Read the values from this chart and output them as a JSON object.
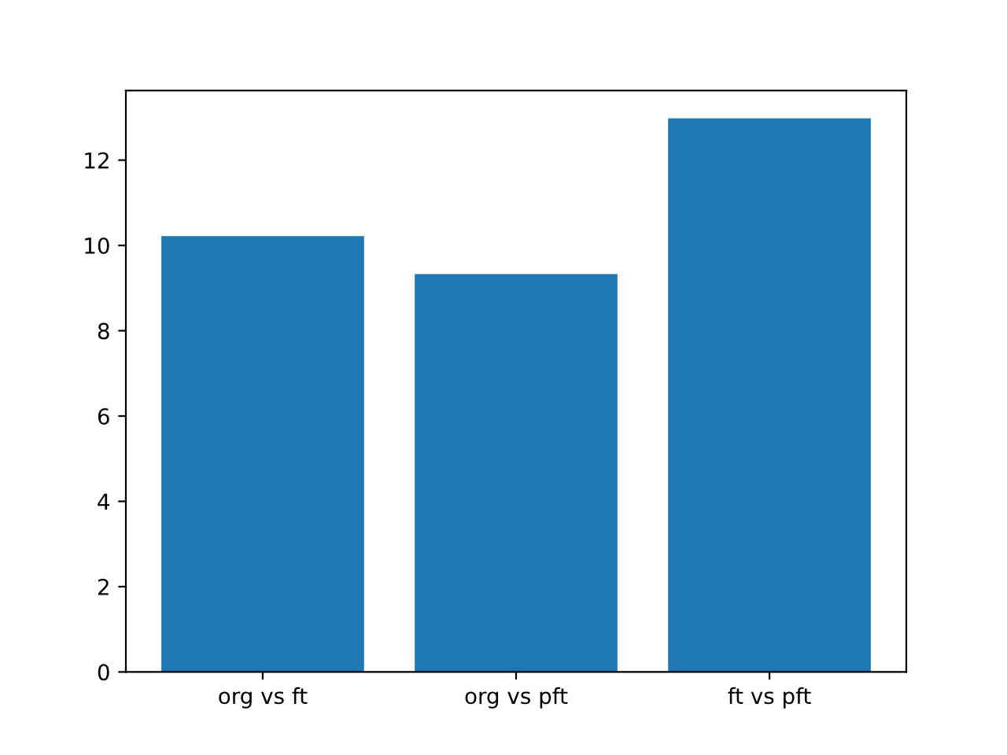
{
  "chart_data": {
    "type": "bar",
    "categories": [
      "org vs ft",
      "org vs pft",
      "ft vs pft"
    ],
    "values": [
      10.22,
      9.33,
      12.98
    ],
    "color": "#1f77b4",
    "ylim": [
      0,
      13.63
    ],
    "yticks": [
      0,
      2,
      4,
      6,
      8,
      10,
      12
    ],
    "grid": false,
    "legend": false
  }
}
